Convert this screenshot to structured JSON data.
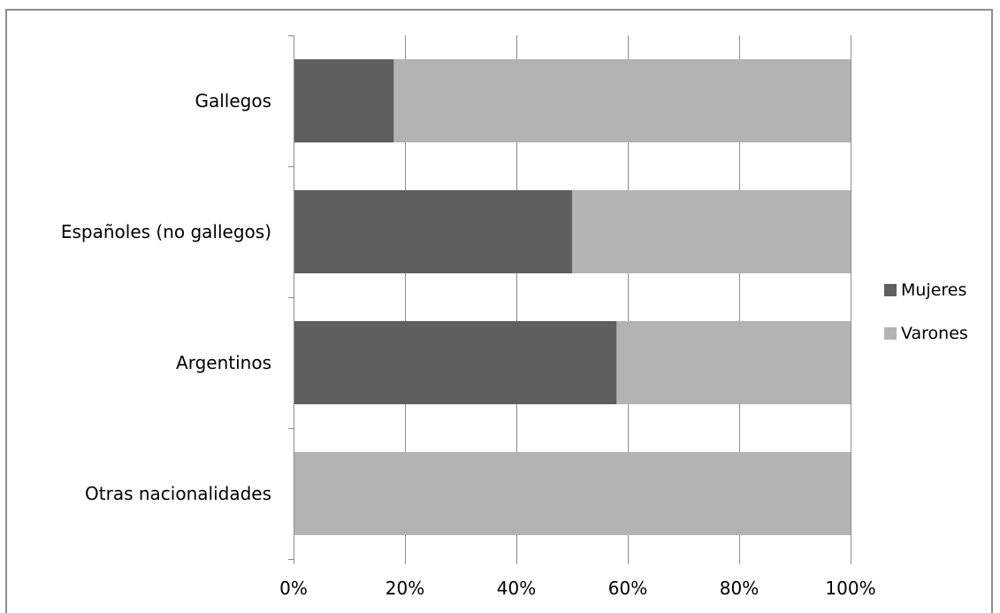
{
  "chart_data": {
    "type": "bar",
    "orientation": "horizontal",
    "stacking": "percent",
    "categories": [
      "Gallegos",
      "Españoles (no gallegos)",
      "Argentinos",
      "Otras nacionalidades"
    ],
    "series": [
      {
        "name": "Mujeres",
        "values": [
          18,
          50,
          58,
          0
        ],
        "color": "#5f5f5f"
      },
      {
        "name": "Varones",
        "values": [
          82,
          50,
          42,
          100
        ],
        "color": "#b3b3b3"
      }
    ],
    "x_ticks": [
      "0%",
      "20%",
      "40%",
      "60%",
      "80%",
      "100%"
    ],
    "xlim": [
      0,
      100
    ],
    "title": "",
    "xlabel": "",
    "ylabel": "",
    "grid": true,
    "legend": "right"
  }
}
